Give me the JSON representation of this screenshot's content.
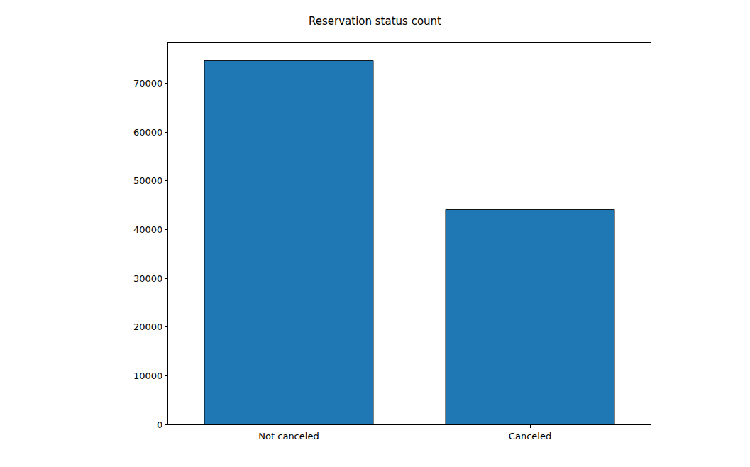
{
  "chart_data": {
    "type": "bar",
    "title": "Reservation status count",
    "categories": [
      "Not canceled",
      "Canceled"
    ],
    "values": [
      74700,
      44100
    ],
    "color": "#1f77b4",
    "ylim": [
      0,
      78400
    ],
    "yticks": [
      0,
      10000,
      20000,
      30000,
      40000,
      50000,
      60000,
      70000
    ],
    "grid": false
  }
}
